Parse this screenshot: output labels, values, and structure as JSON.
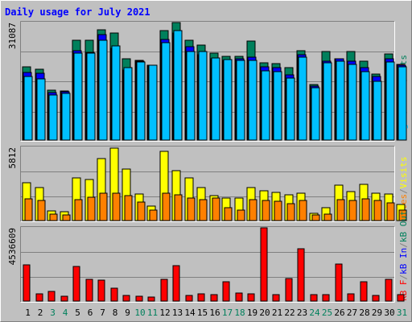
{
  "title": "Daily usage for July 2021",
  "colors": {
    "background": "#c0c0c0",
    "frame_light": "#ffffff",
    "frame_dark": "#808080",
    "grid": "#808080",
    "title": "#0000ff",
    "hits": "#00805c",
    "files": "#0000ff",
    "pages": "#00c0ff",
    "visits": "#ffff00",
    "sites": "#ff8000",
    "kb_f": "#ff0000",
    "kb_in": "#0000ff",
    "kb_out": "#00805c",
    "weekday_label": "#000000",
    "weekend_label": "#00805c"
  },
  "chart_data": [
    {
      "type": "bar",
      "panel": "hits-files-pages",
      "categories": [
        "1",
        "2",
        "3",
        "4",
        "5",
        "6",
        "7",
        "8",
        "9",
        "10",
        "11",
        "12",
        "13",
        "14",
        "15",
        "16",
        "17",
        "18",
        "19",
        "20",
        "21",
        "22",
        "23",
        "24",
        "25",
        "26",
        "27",
        "28",
        "29",
        "30",
        "31"
      ],
      "weekend_days": [
        "3",
        "4",
        "10",
        "11",
        "17",
        "18",
        "24",
        "25",
        "31"
      ],
      "max_label": "31087",
      "ymax": 31087,
      "right_label_parts": [
        {
          "text": "Pages",
          "color_key": "pages"
        },
        {
          "text": "/",
          "color_key": "frame_dark"
        },
        {
          "text": "Files",
          "color_key": "files"
        },
        {
          "text": "/",
          "color_key": "frame_dark"
        },
        {
          "text": "Hits",
          "color_key": "hits"
        }
      ],
      "series": [
        {
          "name": "Hits",
          "color_key": "hits",
          "values": [
            19400,
            18700,
            13200,
            13000,
            26400,
            26500,
            29200,
            28400,
            21400,
            21000,
            19900,
            28900,
            31000,
            26300,
            25100,
            23000,
            22200,
            22200,
            26200,
            20400,
            20200,
            19200,
            23600,
            14600,
            23400,
            21600,
            23500,
            20800,
            17500,
            22700,
            20000
          ]
        },
        {
          "name": "Files",
          "color_key": "files",
          "values": [
            17900,
            17600,
            12600,
            12800,
            23700,
            23200,
            27800,
            24200,
            18600,
            20800,
            19800,
            26600,
            28300,
            24800,
            22500,
            21400,
            21100,
            21500,
            22000,
            19400,
            19200,
            17300,
            22600,
            14200,
            20800,
            21500,
            20800,
            19100,
            16800,
            21600,
            19700
          ]
        },
        {
          "name": "Pages",
          "color_key": "pages",
          "values": [
            16800,
            16200,
            12000,
            12300,
            23000,
            23100,
            26500,
            25000,
            19200,
            20700,
            19800,
            25700,
            28900,
            23400,
            23500,
            21700,
            21200,
            21100,
            21000,
            18400,
            18100,
            16400,
            21900,
            13800,
            20500,
            20800,
            20100,
            18200,
            15600,
            20700,
            19400
          ]
        }
      ]
    },
    {
      "type": "bar",
      "panel": "visits-sites",
      "categories": [
        "1",
        "2",
        "3",
        "4",
        "5",
        "6",
        "7",
        "8",
        "9",
        "10",
        "11",
        "12",
        "13",
        "14",
        "15",
        "16",
        "17",
        "18",
        "19",
        "20",
        "21",
        "22",
        "23",
        "24",
        "25",
        "26",
        "27",
        "28",
        "29",
        "30",
        "31"
      ],
      "max_label": "5812",
      "ymax": 5812,
      "right_label_parts": [
        {
          "text": "Sites",
          "color_key": "sites"
        },
        {
          "text": "/",
          "color_key": "frame_dark"
        },
        {
          "text": "Visits",
          "color_key": "visits"
        }
      ],
      "series": [
        {
          "name": "Visits",
          "color_key": "visits",
          "values": [
            3000,
            2640,
            770,
            690,
            3380,
            3230,
            4920,
            5760,
            4100,
            2090,
            1150,
            5470,
            3980,
            3380,
            2640,
            1980,
            1790,
            1790,
            2620,
            2390,
            2210,
            2030,
            2180,
            600,
            1030,
            2810,
            2300,
            2890,
            2180,
            2120,
            1280
          ]
        },
        {
          "name": "Sites",
          "color_key": "sites",
          "values": [
            1710,
            1620,
            490,
            420,
            1690,
            1850,
            2180,
            2150,
            1970,
            1490,
            810,
            2170,
            2060,
            1780,
            1670,
            1800,
            1050,
            800,
            1630,
            1620,
            1560,
            1320,
            1620,
            450,
            480,
            1670,
            1620,
            1750,
            1610,
            1400,
            860
          ]
        }
      ]
    },
    {
      "type": "bar",
      "panel": "kbytes",
      "categories": [
        "1",
        "2",
        "3",
        "4",
        "5",
        "6",
        "7",
        "8",
        "9",
        "10",
        "11",
        "12",
        "13",
        "14",
        "15",
        "16",
        "17",
        "18",
        "19",
        "20",
        "21",
        "22",
        "23",
        "24",
        "25",
        "26",
        "27",
        "28",
        "29",
        "30",
        "31"
      ],
      "max_label": "4536609",
      "ymax": 4536609,
      "right_label_parts": [
        {
          "text": "kB F",
          "color_key": "kb_f"
        },
        {
          "text": "/",
          "color_key": "frame_dark"
        },
        {
          "text": "kB In",
          "color_key": "kb_in"
        },
        {
          "text": "/",
          "color_key": "frame_dark"
        },
        {
          "text": "kB Out",
          "color_key": "kb_out"
        }
      ],
      "series": [
        {
          "name": "kB F",
          "color_key": "kb_f",
          "values": [
            2240000,
            430000,
            620000,
            290000,
            2150000,
            1330000,
            1300000,
            790000,
            350000,
            300000,
            240000,
            1330000,
            2200000,
            370000,
            460000,
            400000,
            1220000,
            480000,
            450000,
            4536609,
            400000,
            1420000,
            3250000,
            390000,
            420000,
            2270000,
            460000,
            1220000,
            340000,
            1330000,
            420000
          ]
        }
      ]
    }
  ]
}
